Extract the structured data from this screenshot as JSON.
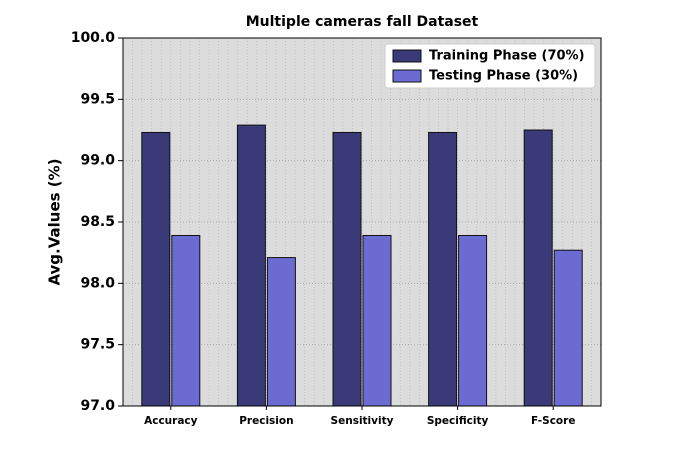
{
  "chart_data": {
    "type": "bar",
    "title": "Multiple cameras fall Dataset",
    "y_label": "Avg.Values (%)",
    "categories": [
      "Accuracy",
      "Precision",
      "Sensitivity",
      "Specificity",
      "F-Score"
    ],
    "series": [
      {
        "name": "Training Phase (70%)",
        "color": "#3a3a78",
        "values": [
          99.23,
          99.29,
          99.23,
          99.23,
          99.25
        ]
      },
      {
        "name": "Testing Phase (30%)",
        "color": "#6b6bd2",
        "values": [
          98.39,
          98.21,
          98.39,
          98.39,
          98.27
        ]
      }
    ],
    "ylim": [
      97,
      100
    ],
    "yticks": [
      {
        "value": 97,
        "label": "97.0"
      },
      97.5,
      {
        "value": 98,
        "label": "98.0"
      },
      98.5,
      {
        "value": 99,
        "label": "99.0"
      },
      99.5,
      {
        "value": 100,
        "label": "100.0"
      }
    ],
    "grid": true,
    "legend": "upper right"
  }
}
